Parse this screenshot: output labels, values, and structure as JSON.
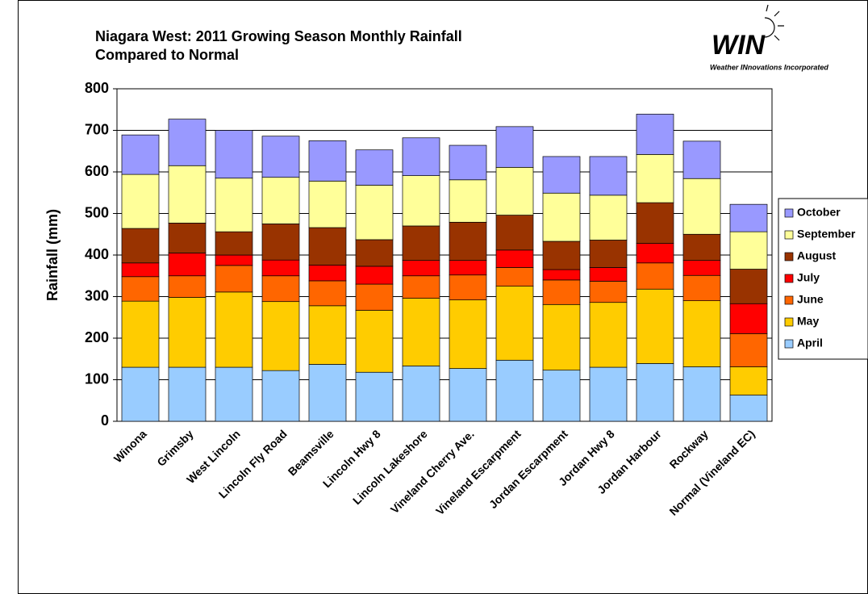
{
  "chart_data": {
    "type": "stacked_bar",
    "title": [
      "Niagara West: 2011 Growing Season Monthly Rainfall",
      "Compared to Normal"
    ],
    "logo_text": "WIN",
    "logo_subtext": "Weather INnovations Incorporated",
    "y_label": "Rainfall (mm)",
    "categories": [
      "Winona",
      "Grimsby",
      "West Lincoln",
      "Lincoln Fly Road",
      "Beamsville",
      "Lincoln Hwy 8",
      "Lincoln Lakeshore",
      "Vineland Cherry Ave.",
      "Vineland Escarpment",
      "Jordan Escarpment",
      "Jordan Hwy 8",
      "Jordan Harbour",
      "Rockway",
      "Normal (Vineland EC)"
    ],
    "series": [
      {
        "name": "April",
        "color": "#99ccff",
        "values": [
          130,
          130,
          130,
          122,
          137,
          118,
          133,
          127,
          147,
          123,
          130,
          139,
          131,
          63
        ]
      },
      {
        "name": "May",
        "color": "#ffcc00",
        "values": [
          159,
          168,
          181,
          166,
          141,
          149,
          163,
          165,
          178,
          158,
          156,
          179,
          159,
          68
        ]
      },
      {
        "name": "June",
        "color": "#ff6600",
        "values": [
          59,
          52,
          64,
          62,
          60,
          63,
          54,
          60,
          45,
          59,
          51,
          63,
          61,
          80
        ]
      },
      {
        "name": "July",
        "color": "#ff0000",
        "values": [
          33,
          55,
          25,
          38,
          38,
          43,
          37,
          35,
          42,
          25,
          33,
          47,
          36,
          72
        ]
      },
      {
        "name": "August",
        "color": "#993300",
        "values": [
          83,
          72,
          56,
          87,
          90,
          64,
          83,
          92,
          84,
          68,
          66,
          98,
          63,
          83
        ]
      },
      {
        "name": "September",
        "color": "#ffff99",
        "values": [
          130,
          138,
          129,
          112,
          112,
          131,
          121,
          102,
          115,
          116,
          108,
          116,
          134,
          90
        ]
      },
      {
        "name": "October",
        "color": "#9999ff",
        "values": [
          95,
          112,
          115,
          99,
          97,
          85,
          91,
          83,
          98,
          88,
          93,
          97,
          90,
          66
        ]
      }
    ],
    "ylim": [
      0,
      800
    ],
    "yticks": [
      0,
      100,
      200,
      300,
      400,
      500,
      600,
      700,
      800
    ],
    "grid": true,
    "legend": "right"
  }
}
